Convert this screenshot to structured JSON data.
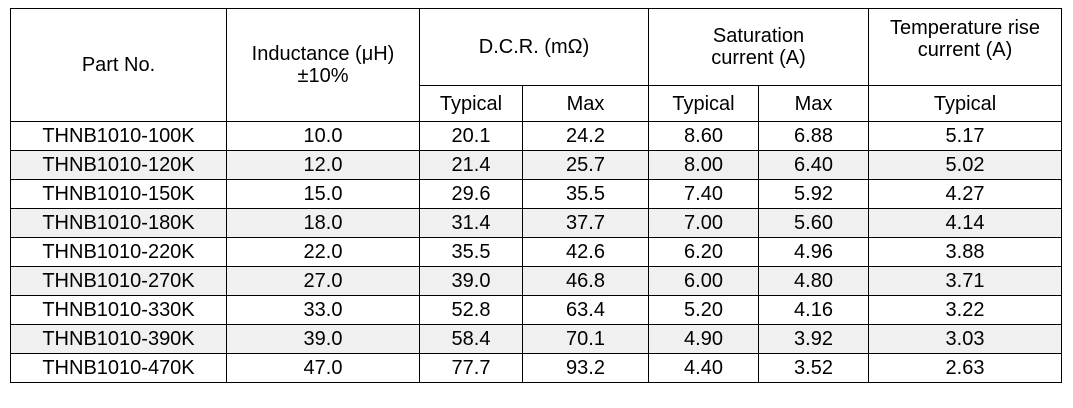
{
  "headers": {
    "part_no": "Part No.",
    "inductance": "Inductance (μH)",
    "inductance_tol": "±10%",
    "dcr": "D.C.R. (mΩ)",
    "saturation": "Saturation current (A)",
    "temp_rise": "Temperature rise current (A)",
    "typical": "Typical",
    "max": "Max"
  },
  "rows": [
    {
      "part": "THNB1010-100K",
      "ind": "10.0",
      "dcr_typ": "20.1",
      "dcr_max": "24.2",
      "sat_typ": "8.60",
      "sat_max": "6.88",
      "temp": "5.17"
    },
    {
      "part": "THNB1010-120K",
      "ind": "12.0",
      "dcr_typ": "21.4",
      "dcr_max": "25.7",
      "sat_typ": "8.00",
      "sat_max": "6.40",
      "temp": "5.02"
    },
    {
      "part": "THNB1010-150K",
      "ind": "15.0",
      "dcr_typ": "29.6",
      "dcr_max": "35.5",
      "sat_typ": "7.40",
      "sat_max": "5.92",
      "temp": "4.27"
    },
    {
      "part": "THNB1010-180K",
      "ind": "18.0",
      "dcr_typ": "31.4",
      "dcr_max": "37.7",
      "sat_typ": "7.00",
      "sat_max": "5.60",
      "temp": "4.14"
    },
    {
      "part": "THNB1010-220K",
      "ind": "22.0",
      "dcr_typ": "35.5",
      "dcr_max": "42.6",
      "sat_typ": "6.20",
      "sat_max": "4.96",
      "temp": "3.88"
    },
    {
      "part": "THNB1010-270K",
      "ind": "27.0",
      "dcr_typ": "39.0",
      "dcr_max": "46.8",
      "sat_typ": "6.00",
      "sat_max": "4.80",
      "temp": "3.71"
    },
    {
      "part": "THNB1010-330K",
      "ind": "33.0",
      "dcr_typ": "52.8",
      "dcr_max": "63.4",
      "sat_typ": "5.20",
      "sat_max": "4.16",
      "temp": "3.22"
    },
    {
      "part": "THNB1010-390K",
      "ind": "39.0",
      "dcr_typ": "58.4",
      "dcr_max": "70.1",
      "sat_typ": "4.90",
      "sat_max": "3.92",
      "temp": "3.03"
    },
    {
      "part": "THNB1010-470K",
      "ind": "47.0",
      "dcr_typ": "77.7",
      "dcr_max": "93.2",
      "sat_typ": "4.40",
      "sat_max": "3.52",
      "temp": "2.63"
    }
  ]
}
